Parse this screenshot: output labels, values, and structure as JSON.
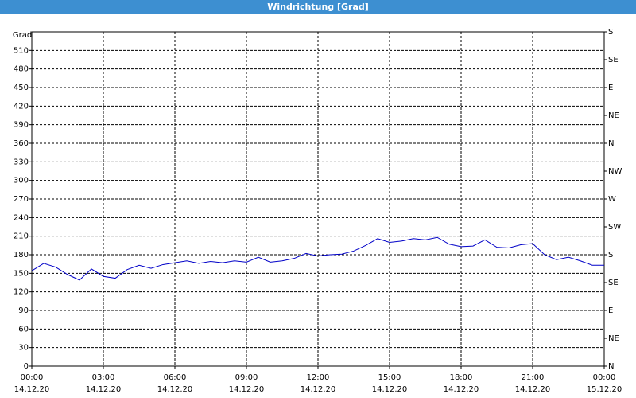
{
  "window_title": "Windrichtung [Grad]",
  "chart_data": {
    "type": "line",
    "y_label": "Grad",
    "x": [
      0,
      0.5,
      1,
      1.5,
      2,
      2.5,
      3,
      3.5,
      4,
      4.5,
      5,
      5.5,
      6,
      6.5,
      7,
      7.5,
      8,
      8.5,
      9,
      9.5,
      10,
      10.5,
      11,
      11.5,
      12,
      12.5,
      13,
      13.5,
      14,
      14.5,
      15,
      15.5,
      16,
      16.5,
      17,
      17.5,
      18,
      18.5,
      19,
      19.5,
      20,
      20.5,
      21,
      21.5,
      22,
      22.5,
      23,
      23.5,
      24
    ],
    "series": [
      {
        "color": "#0000c8",
        "values": [
          154,
          166,
          160,
          148,
          139,
          157,
          145,
          142,
          156,
          163,
          158,
          164,
          167,
          170,
          166,
          169,
          167,
          170,
          168,
          176,
          168,
          170,
          174,
          182,
          178,
          180,
          181,
          186,
          195,
          206,
          200,
          202,
          206,
          204,
          208,
          197,
          193,
          194,
          204,
          192,
          191,
          196,
          198,
          180,
          172,
          176,
          170,
          163,
          163
        ]
      }
    ],
    "xlim": [
      0,
      24
    ],
    "xticks": [
      {
        "value": 0,
        "label": "00:00",
        "date": "14.12.20"
      },
      {
        "value": 3,
        "label": "03:00",
        "date": "14.12.20"
      },
      {
        "value": 6,
        "label": "06:00",
        "date": "14.12.20"
      },
      {
        "value": 9,
        "label": "09:00",
        "date": "14.12.20"
      },
      {
        "value": 12,
        "label": "12:00",
        "date": "14.12.20"
      },
      {
        "value": 15,
        "label": "15:00",
        "date": "14.12.20"
      },
      {
        "value": 18,
        "label": "18:00",
        "date": "14.12.20"
      },
      {
        "value": 21,
        "label": "21:00",
        "date": "14.12.20"
      },
      {
        "value": 24,
        "label": "00:00",
        "date": "15.12.20"
      }
    ],
    "ylim": [
      0,
      540
    ],
    "yticks": [
      0,
      30,
      60,
      90,
      120,
      150,
      180,
      210,
      240,
      270,
      300,
      330,
      360,
      390,
      420,
      450,
      480,
      510
    ],
    "y2lim": [
      0,
      540
    ],
    "y2ticks": [
      {
        "value": 0,
        "label": "N"
      },
      {
        "value": 45,
        "label": "NE"
      },
      {
        "value": 90,
        "label": "E"
      },
      {
        "value": 135,
        "label": "SE"
      },
      {
        "value": 180,
        "label": "S"
      },
      {
        "value": 225,
        "label": "SW"
      },
      {
        "value": 270,
        "label": "W"
      },
      {
        "value": 315,
        "label": "NW"
      },
      {
        "value": 360,
        "label": "N"
      },
      {
        "value": 405,
        "label": "NE"
      },
      {
        "value": 450,
        "label": "E"
      },
      {
        "value": 495,
        "label": "SE"
      },
      {
        "value": 540,
        "label": "S"
      }
    ],
    "grid": true
  }
}
